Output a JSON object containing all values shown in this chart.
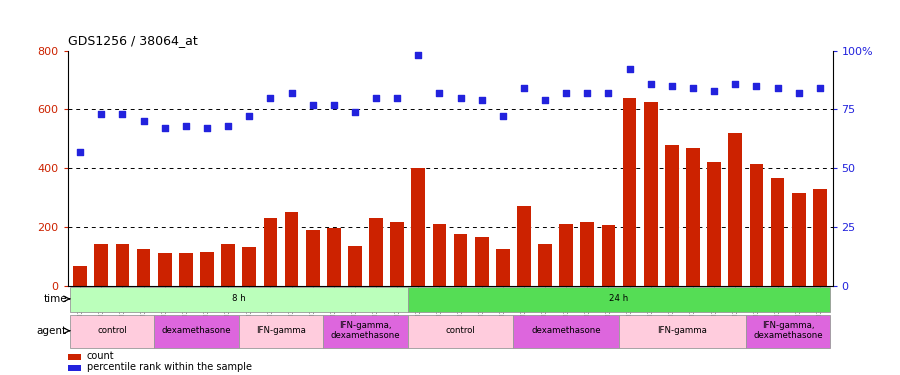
{
  "title": "GDS1256 / 38064_at",
  "samples": [
    "GSM31694",
    "GSM31695",
    "GSM31696",
    "GSM31697",
    "GSM31698",
    "GSM31699",
    "GSM31700",
    "GSM31701",
    "GSM31702",
    "GSM31703",
    "GSM31704",
    "GSM31705",
    "GSM31706",
    "GSM31707",
    "GSM31708",
    "GSM31709",
    "GSM31674",
    "GSM31678",
    "GSM31682",
    "GSM31686",
    "GSM31690",
    "GSM31675",
    "GSM31679",
    "GSM31683",
    "GSM31687",
    "GSM31691",
    "GSM31676",
    "GSM31680",
    "GSM31684",
    "GSM31688",
    "GSM31692",
    "GSM31677",
    "GSM31681",
    "GSM31685",
    "GSM31689",
    "GSM31693"
  ],
  "counts": [
    65,
    140,
    140,
    125,
    110,
    110,
    115,
    140,
    130,
    230,
    250,
    190,
    195,
    135,
    230,
    215,
    400,
    210,
    175,
    165,
    125,
    270,
    140,
    210,
    215,
    205,
    640,
    625,
    480,
    470,
    420,
    520,
    415,
    365,
    315,
    330
  ],
  "percentile": [
    57,
    73,
    73,
    70,
    67,
    68,
    67,
    68,
    72,
    80,
    82,
    77,
    77,
    74,
    80,
    80,
    98,
    82,
    80,
    79,
    72,
    84,
    79,
    82,
    82,
    82,
    92,
    86,
    85,
    84,
    83,
    86,
    85,
    84,
    82,
    84
  ],
  "time_groups": [
    {
      "label": "8 h",
      "start": 0,
      "end": 16,
      "color": "#bbffbb"
    },
    {
      "label": "24 h",
      "start": 16,
      "end": 36,
      "color": "#55dd55"
    }
  ],
  "agent_groups": [
    {
      "label": "control",
      "start": 0,
      "end": 4,
      "color": "#ffccdd"
    },
    {
      "label": "dexamethasone",
      "start": 4,
      "end": 8,
      "color": "#dd66dd"
    },
    {
      "label": "IFN-gamma",
      "start": 8,
      "end": 12,
      "color": "#ffccdd"
    },
    {
      "label": "IFN-gamma,\ndexamethasone",
      "start": 12,
      "end": 16,
      "color": "#dd66dd"
    },
    {
      "label": "control",
      "start": 16,
      "end": 21,
      "color": "#ffccdd"
    },
    {
      "label": "dexamethasone",
      "start": 21,
      "end": 26,
      "color": "#dd66dd"
    },
    {
      "label": "IFN-gamma",
      "start": 26,
      "end": 32,
      "color": "#ffccdd"
    },
    {
      "label": "IFN-gamma,\ndexamethasone",
      "start": 32,
      "end": 36,
      "color": "#dd66dd"
    }
  ],
  "bar_color": "#cc2200",
  "dot_color": "#2222dd",
  "left_ylim": [
    0,
    800
  ],
  "left_yticks": [
    0,
    200,
    400,
    600,
    800
  ],
  "right_ylim": [
    0,
    100
  ],
  "right_yticks": [
    0,
    25,
    50,
    75,
    100
  ],
  "dotted_lines": [
    200,
    400,
    600
  ],
  "bar_width": 0.65,
  "dot_size": 22
}
